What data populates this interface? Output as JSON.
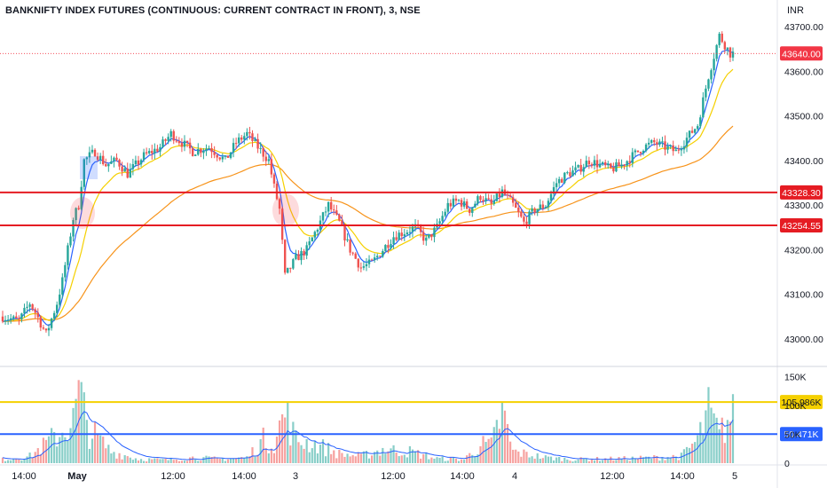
{
  "title": "BANKNIFTY INDEX FUTURES (CONTINUOUS: CURRENT CONTRACT IN FRONT), 3, NSE",
  "currency": "INR",
  "chart_data": {
    "type": "candlestick",
    "price_axis": {
      "ticks": [
        "43700.00",
        "43600.00",
        "43500.00",
        "43400.00",
        "43300.00",
        "43200.00",
        "43100.00",
        "43000.00"
      ],
      "tick_values": [
        43700,
        43600,
        43500,
        43400,
        43300,
        43200,
        43100,
        43000
      ],
      "range": [
        42940,
        43760
      ]
    },
    "volume_axis": {
      "ticks": [
        "150K",
        "100K",
        "50K",
        "0"
      ],
      "tick_values": [
        150000,
        100000,
        50000,
        0
      ],
      "range": [
        0,
        160000
      ]
    },
    "time_axis": {
      "labels": [
        "14:00",
        "May",
        "12:00",
        "14:00",
        "3",
        "12:00",
        "14:00",
        "4",
        "12:00",
        "14:00",
        "5"
      ],
      "bold_labels": [
        "May"
      ]
    },
    "last_price": {
      "value": 43640.0,
      "label": "43640.00",
      "color": "#f23645"
    },
    "horizontal_lines": [
      {
        "value": 43328.3,
        "label": "43328.30",
        "color": "#e51c23"
      },
      {
        "value": 43254.55,
        "label": "43254.55",
        "color": "#e51c23"
      }
    ],
    "volume_lines": [
      {
        "value": 105986,
        "label": "105.986K",
        "color": "#f5d000"
      },
      {
        "value": 50471,
        "label": "50.471K",
        "color": "#2962ff"
      }
    ],
    "up_color": "#26a69a",
    "down_color": "#ef5350",
    "ma_colors": {
      "fast": "#2962ff",
      "mid": "#f5d000",
      "slow": "#f7931a"
    },
    "price_path": [
      [
        0,
        43050
      ],
      [
        6,
        43040
      ],
      [
        10,
        43080
      ],
      [
        12,
        43060
      ],
      [
        16,
        43010
      ],
      [
        20,
        43080
      ],
      [
        22,
        43130
      ],
      [
        26,
        43270
      ],
      [
        28,
        43300
      ],
      [
        30,
        43400
      ],
      [
        34,
        43420
      ],
      [
        38,
        43390
      ],
      [
        42,
        43400
      ],
      [
        46,
        43370
      ],
      [
        52,
        43410
      ],
      [
        58,
        43430
      ],
      [
        62,
        43460
      ],
      [
        66,
        43440
      ],
      [
        70,
        43420
      ],
      [
        76,
        43430
      ],
      [
        82,
        43400
      ],
      [
        86,
        43440
      ],
      [
        90,
        43460
      ],
      [
        94,
        43430
      ],
      [
        98,
        43400
      ],
      [
        100,
        43340
      ],
      [
        102,
        43290
      ],
      [
        104,
        43140
      ],
      [
        108,
        43180
      ],
      [
        112,
        43200
      ],
      [
        116,
        43250
      ],
      [
        120,
        43300
      ],
      [
        124,
        43260
      ],
      [
        128,
        43200
      ],
      [
        132,
        43160
      ],
      [
        136,
        43170
      ],
      [
        140,
        43200
      ],
      [
        144,
        43230
      ],
      [
        148,
        43240
      ],
      [
        152,
        43250
      ],
      [
        156,
        43220
      ],
      [
        160,
        43250
      ],
      [
        164,
        43300
      ],
      [
        168,
        43310
      ],
      [
        172,
        43290
      ],
      [
        176,
        43320
      ],
      [
        180,
        43300
      ],
      [
        184,
        43330
      ],
      [
        188,
        43300
      ],
      [
        192,
        43260
      ],
      [
        196,
        43290
      ],
      [
        200,
        43300
      ],
      [
        204,
        43350
      ],
      [
        208,
        43370
      ],
      [
        212,
        43380
      ],
      [
        216,
        43400
      ],
      [
        220,
        43390
      ],
      [
        224,
        43380
      ],
      [
        228,
        43390
      ],
      [
        232,
        43410
      ],
      [
        236,
        43430
      ],
      [
        240,
        43440
      ],
      [
        244,
        43430
      ],
      [
        248,
        43420
      ],
      [
        252,
        43450
      ],
      [
        256,
        43480
      ],
      [
        260,
        43590
      ],
      [
        264,
        43680
      ],
      [
        268,
        43640
      ]
    ],
    "volume_path": [
      [
        0,
        8000
      ],
      [
        10,
        15000
      ],
      [
        20,
        60000
      ],
      [
        26,
        90000
      ],
      [
        28,
        150000
      ],
      [
        32,
        70000
      ],
      [
        40,
        25000
      ],
      [
        50,
        9000
      ],
      [
        60,
        7000
      ],
      [
        70,
        12000
      ],
      [
        80,
        9000
      ],
      [
        90,
        12000
      ],
      [
        96,
        50000
      ],
      [
        100,
        45000
      ],
      [
        104,
        110000
      ],
      [
        108,
        50000
      ],
      [
        116,
        40000
      ],
      [
        124,
        20000
      ],
      [
        132,
        15000
      ],
      [
        140,
        30000
      ],
      [
        150,
        25000
      ],
      [
        160,
        10000
      ],
      [
        170,
        8000
      ],
      [
        176,
        40000
      ],
      [
        180,
        38000
      ],
      [
        184,
        110000
      ],
      [
        188,
        25000
      ],
      [
        200,
        12000
      ],
      [
        210,
        8000
      ],
      [
        220,
        9000
      ],
      [
        230,
        10000
      ],
      [
        240,
        12000
      ],
      [
        250,
        15000
      ],
      [
        256,
        50000
      ],
      [
        260,
        110000
      ],
      [
        264,
        60000
      ],
      [
        268,
        100000
      ]
    ]
  }
}
